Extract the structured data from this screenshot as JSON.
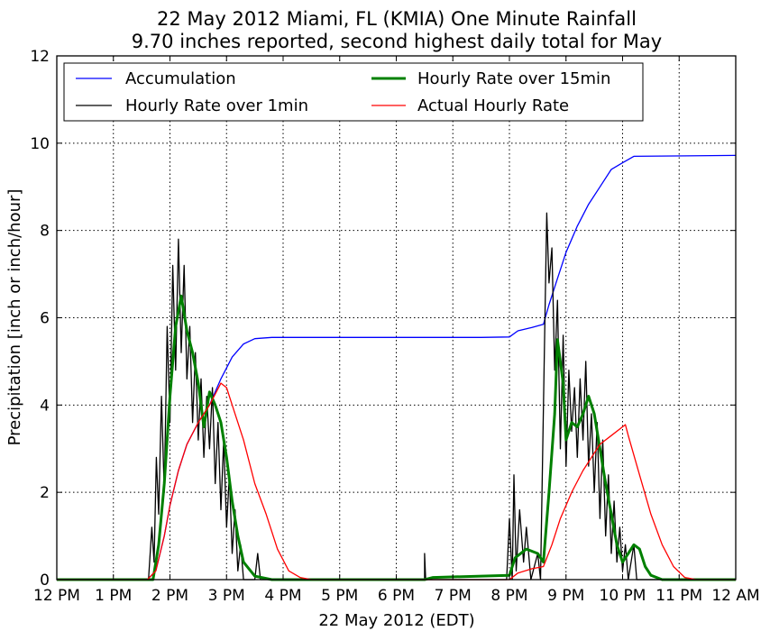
{
  "chart_data": {
    "type": "line",
    "title": "22 May 2012 Miami, FL (KMIA) One Minute Rainfall",
    "subtitle": "9.70 inches reported, second highest daily total for May",
    "xlabel": "22 May 2012 (EDT)",
    "ylabel": "Precipitation [inch or inch/hour]",
    "xlim": [
      12,
      24
    ],
    "ylim": [
      0,
      12
    ],
    "grid": true,
    "legend_position": "top-left",
    "x_ticks": [
      {
        "value": 12,
        "label": "12 PM"
      },
      {
        "value": 13,
        "label": "1 PM"
      },
      {
        "value": 14,
        "label": "2 PM"
      },
      {
        "value": 15,
        "label": "3 PM"
      },
      {
        "value": 16,
        "label": "4 PM"
      },
      {
        "value": 17,
        "label": "5 PM"
      },
      {
        "value": 18,
        "label": "6 PM"
      },
      {
        "value": 19,
        "label": "7 PM"
      },
      {
        "value": 20,
        "label": "8 PM"
      },
      {
        "value": 21,
        "label": "9 PM"
      },
      {
        "value": 22,
        "label": "10 PM"
      },
      {
        "value": 23,
        "label": "11 PM"
      },
      {
        "value": 24,
        "label": "12 AM"
      }
    ],
    "y_ticks": [
      {
        "value": 0,
        "label": "0"
      },
      {
        "value": 2,
        "label": "2"
      },
      {
        "value": 4,
        "label": "4"
      },
      {
        "value": 6,
        "label": "6"
      },
      {
        "value": 8,
        "label": "8"
      },
      {
        "value": 10,
        "label": "10"
      },
      {
        "value": 12,
        "label": "12"
      }
    ],
    "series": [
      {
        "name": "Accumulation",
        "color": "#0000ff",
        "width": 1.3,
        "points": [
          [
            12,
            0
          ],
          [
            13.6,
            0
          ],
          [
            13.75,
            0.2
          ],
          [
            13.9,
            1.0
          ],
          [
            14.0,
            1.7
          ],
          [
            14.15,
            2.5
          ],
          [
            14.3,
            3.1
          ],
          [
            14.5,
            3.6
          ],
          [
            14.7,
            4.0
          ],
          [
            14.9,
            4.6
          ],
          [
            15.1,
            5.1
          ],
          [
            15.3,
            5.4
          ],
          [
            15.5,
            5.52
          ],
          [
            15.8,
            5.55
          ],
          [
            19.5,
            5.55
          ],
          [
            20.0,
            5.56
          ],
          [
            20.15,
            5.7
          ],
          [
            20.4,
            5.78
          ],
          [
            20.6,
            5.85
          ],
          [
            20.7,
            6.3
          ],
          [
            20.85,
            6.9
          ],
          [
            21.0,
            7.5
          ],
          [
            21.2,
            8.1
          ],
          [
            21.4,
            8.6
          ],
          [
            21.6,
            9.0
          ],
          [
            21.8,
            9.4
          ],
          [
            22.0,
            9.55
          ],
          [
            22.2,
            9.7
          ],
          [
            24,
            9.72
          ]
        ]
      },
      {
        "name": "Hourly Rate over 1min",
        "color": "#000000",
        "width": 1.3,
        "points": [
          [
            12,
            0
          ],
          [
            13.62,
            0
          ],
          [
            13.68,
            1.2
          ],
          [
            13.72,
            0.4
          ],
          [
            13.76,
            2.8
          ],
          [
            13.8,
            1.5
          ],
          [
            13.85,
            4.2
          ],
          [
            13.9,
            2.0
          ],
          [
            13.95,
            5.8
          ],
          [
            14.0,
            3.6
          ],
          [
            14.05,
            7.2
          ],
          [
            14.1,
            4.8
          ],
          [
            14.15,
            7.8
          ],
          [
            14.2,
            5.2
          ],
          [
            14.25,
            7.2
          ],
          [
            14.3,
            4.6
          ],
          [
            14.35,
            5.8
          ],
          [
            14.4,
            3.6
          ],
          [
            14.45,
            5.2
          ],
          [
            14.5,
            3.2
          ],
          [
            14.55,
            4.6
          ],
          [
            14.6,
            2.8
          ],
          [
            14.65,
            4.2
          ],
          [
            14.7,
            3.0
          ],
          [
            14.75,
            4.4
          ],
          [
            14.8,
            2.2
          ],
          [
            14.85,
            3.6
          ],
          [
            14.9,
            1.6
          ],
          [
            14.95,
            3.2
          ],
          [
            15.0,
            1.2
          ],
          [
            15.05,
            2.4
          ],
          [
            15.1,
            0.6
          ],
          [
            15.15,
            1.6
          ],
          [
            15.2,
            0.2
          ],
          [
            15.25,
            0.8
          ],
          [
            15.3,
            0
          ],
          [
            15.5,
            0
          ],
          [
            15.55,
            0.6
          ],
          [
            15.6,
            0
          ],
          [
            18.5,
            0
          ],
          [
            18.5,
            0.6
          ],
          [
            18.52,
            0
          ],
          [
            19.95,
            0
          ],
          [
            20.0,
            1.4
          ],
          [
            20.05,
            0
          ],
          [
            20.08,
            2.4
          ],
          [
            20.12,
            0.2
          ],
          [
            20.18,
            1.6
          ],
          [
            20.25,
            0.4
          ],
          [
            20.3,
            1.2
          ],
          [
            20.38,
            0
          ],
          [
            20.5,
            0.6
          ],
          [
            20.55,
            0
          ],
          [
            20.62,
            5.4
          ],
          [
            20.66,
            8.4
          ],
          [
            20.7,
            6.8
          ],
          [
            20.75,
            7.6
          ],
          [
            20.8,
            4.8
          ],
          [
            20.85,
            6.4
          ],
          [
            20.9,
            3.0
          ],
          [
            20.95,
            5.6
          ],
          [
            21.0,
            2.6
          ],
          [
            21.05,
            4.8
          ],
          [
            21.1,
            3.4
          ],
          [
            21.15,
            4.4
          ],
          [
            21.2,
            2.8
          ],
          [
            21.25,
            4.6
          ],
          [
            21.3,
            3.2
          ],
          [
            21.35,
            5.0
          ],
          [
            21.4,
            2.6
          ],
          [
            21.45,
            3.8
          ],
          [
            21.5,
            2.0
          ],
          [
            21.55,
            3.6
          ],
          [
            21.6,
            1.4
          ],
          [
            21.65,
            3.2
          ],
          [
            21.7,
            1.0
          ],
          [
            21.75,
            2.4
          ],
          [
            21.8,
            0.6
          ],
          [
            21.85,
            1.8
          ],
          [
            21.9,
            0.4
          ],
          [
            21.95,
            1.2
          ],
          [
            22.0,
            0.2
          ],
          [
            22.05,
            0.8
          ],
          [
            22.1,
            0
          ],
          [
            22.2,
            0.8
          ],
          [
            22.25,
            0
          ],
          [
            24,
            0
          ]
        ]
      },
      {
        "name": "Hourly Rate over 15min",
        "color": "#008000",
        "width": 3,
        "points": [
          [
            12,
            0
          ],
          [
            13.7,
            0
          ],
          [
            13.8,
            0.8
          ],
          [
            13.9,
            2.2
          ],
          [
            14.0,
            4.2
          ],
          [
            14.1,
            5.8
          ],
          [
            14.2,
            6.5
          ],
          [
            14.3,
            5.7
          ],
          [
            14.4,
            5.2
          ],
          [
            14.5,
            4.5
          ],
          [
            14.6,
            3.5
          ],
          [
            14.7,
            4.3
          ],
          [
            14.8,
            4.0
          ],
          [
            14.9,
            3.6
          ],
          [
            15.0,
            2.8
          ],
          [
            15.1,
            1.8
          ],
          [
            15.2,
            1.0
          ],
          [
            15.3,
            0.4
          ],
          [
            15.5,
            0.08
          ],
          [
            15.8,
            0
          ],
          [
            18.5,
            0
          ],
          [
            18.65,
            0.05
          ],
          [
            20.0,
            0.1
          ],
          [
            20.1,
            0.5
          ],
          [
            20.3,
            0.7
          ],
          [
            20.5,
            0.6
          ],
          [
            20.6,
            0.4
          ],
          [
            20.7,
            2.0
          ],
          [
            20.8,
            3.8
          ],
          [
            20.85,
            5.5
          ],
          [
            20.95,
            4.5
          ],
          [
            21.0,
            3.2
          ],
          [
            21.1,
            3.6
          ],
          [
            21.2,
            3.5
          ],
          [
            21.3,
            3.8
          ],
          [
            21.4,
            4.2
          ],
          [
            21.5,
            3.8
          ],
          [
            21.6,
            3.0
          ],
          [
            21.7,
            2.2
          ],
          [
            21.8,
            1.5
          ],
          [
            21.9,
            0.8
          ],
          [
            22.0,
            0.4
          ],
          [
            22.1,
            0.6
          ],
          [
            22.2,
            0.8
          ],
          [
            22.3,
            0.7
          ],
          [
            22.4,
            0.3
          ],
          [
            22.5,
            0.1
          ],
          [
            22.7,
            0
          ],
          [
            24,
            0
          ]
        ]
      },
      {
        "name": "Actual Hourly Rate",
        "color": "#ff0000",
        "width": 1.3,
        "points": [
          [
            12,
            0
          ],
          [
            13.6,
            0
          ],
          [
            13.75,
            0.2
          ],
          [
            13.9,
            1.0
          ],
          [
            14.0,
            1.7
          ],
          [
            14.15,
            2.5
          ],
          [
            14.3,
            3.1
          ],
          [
            14.5,
            3.6
          ],
          [
            14.7,
            4.0
          ],
          [
            14.9,
            4.5
          ],
          [
            15.0,
            4.4
          ],
          [
            15.1,
            4.0
          ],
          [
            15.3,
            3.2
          ],
          [
            15.5,
            2.2
          ],
          [
            15.7,
            1.5
          ],
          [
            15.9,
            0.7
          ],
          [
            16.1,
            0.2
          ],
          [
            16.3,
            0.05
          ],
          [
            16.5,
            0
          ],
          [
            20.0,
            0
          ],
          [
            20.15,
            0.15
          ],
          [
            20.4,
            0.25
          ],
          [
            20.6,
            0.3
          ],
          [
            20.75,
            0.8
          ],
          [
            20.9,
            1.4
          ],
          [
            21.1,
            2.0
          ],
          [
            21.3,
            2.5
          ],
          [
            21.6,
            3.1
          ],
          [
            21.8,
            3.3
          ],
          [
            22.0,
            3.5
          ],
          [
            22.05,
            3.55
          ],
          [
            22.1,
            3.3
          ],
          [
            22.3,
            2.4
          ],
          [
            22.5,
            1.5
          ],
          [
            22.7,
            0.8
          ],
          [
            22.9,
            0.3
          ],
          [
            23.1,
            0.05
          ],
          [
            23.3,
            0
          ],
          [
            24,
            0
          ]
        ]
      }
    ]
  }
}
